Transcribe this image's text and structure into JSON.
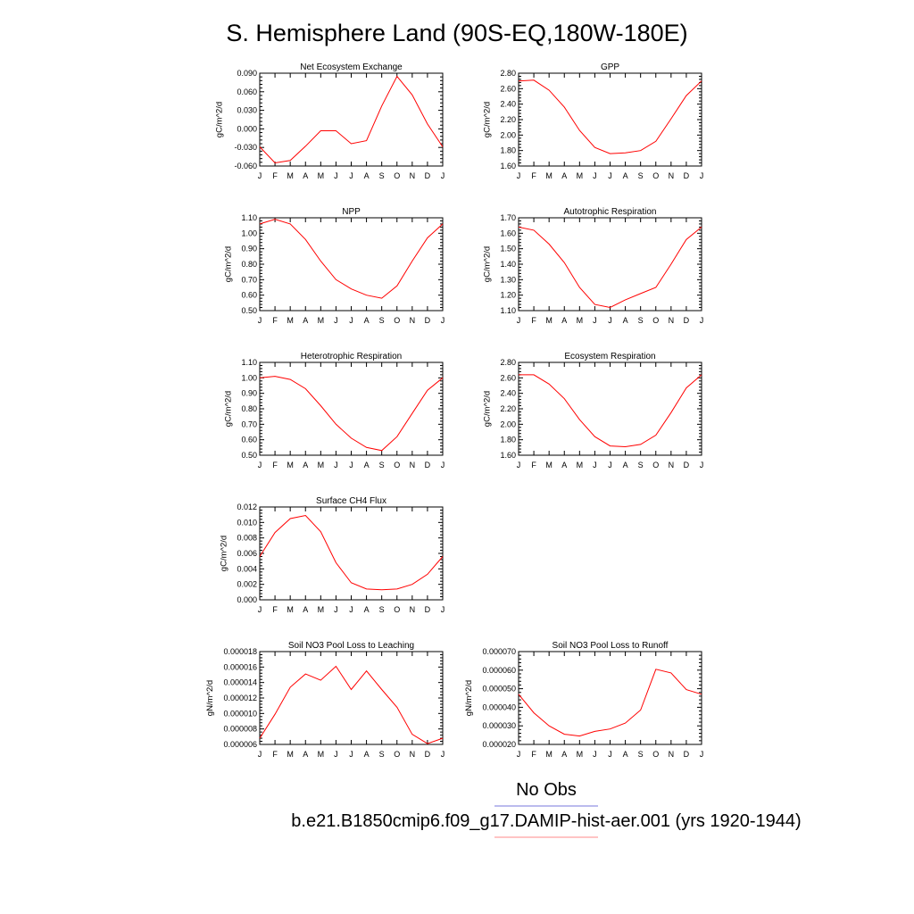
{
  "title": "S. Hemisphere Land (90S-EQ,180W-180E)",
  "legend": {
    "entries": [
      {
        "label": "No Obs",
        "color": "#7777dd"
      },
      {
        "label": "b.e21.B1850cmip6.f09_g17.DAMIP-hist-aer.001 (yrs 1920-1944)",
        "color": "#ff8888"
      }
    ]
  },
  "colors": {
    "series": "#ff0000",
    "axes": "#000000"
  },
  "chart_data": [
    {
      "type": "line",
      "title": "Net Ecosystem Exchange",
      "ylabel": "gC/m^2/d",
      "categories": [
        "J",
        "F",
        "M",
        "A",
        "M",
        "J",
        "J",
        "A",
        "S",
        "O",
        "N",
        "D",
        "J"
      ],
      "ylim": [
        -0.06,
        0.09
      ],
      "yticks": [
        -0.06,
        -0.03,
        0.0,
        0.03,
        0.06,
        0.09
      ],
      "ytick_labels": [
        "-0.060",
        "-0.030",
        "0.000",
        "0.030",
        "0.060",
        "0.090"
      ],
      "values": [
        -0.029,
        -0.055,
        -0.051,
        -0.028,
        -0.003,
        -0.003,
        -0.024,
        -0.019,
        0.037,
        0.085,
        0.055,
        0.008,
        -0.029
      ]
    },
    {
      "type": "line",
      "title": "GPP",
      "ylabel": "gC/m^2/d",
      "categories": [
        "J",
        "F",
        "M",
        "A",
        "M",
        "J",
        "J",
        "A",
        "S",
        "O",
        "N",
        "D",
        "J"
      ],
      "ylim": [
        1.6,
        2.8
      ],
      "yticks": [
        1.6,
        1.8,
        2.0,
        2.2,
        2.4,
        2.6,
        2.8
      ],
      "ytick_labels": [
        "1.60",
        "1.80",
        "2.00",
        "2.20",
        "2.40",
        "2.60",
        "2.80"
      ],
      "values": [
        2.7,
        2.71,
        2.58,
        2.36,
        2.06,
        1.84,
        1.76,
        1.77,
        1.8,
        1.92,
        2.21,
        2.51,
        2.7
      ]
    },
    {
      "type": "line",
      "title": "NPP",
      "ylabel": "gC/m^2/d",
      "categories": [
        "J",
        "F",
        "M",
        "A",
        "M",
        "J",
        "J",
        "A",
        "S",
        "O",
        "N",
        "D",
        "J"
      ],
      "ylim": [
        0.5,
        1.1
      ],
      "yticks": [
        0.5,
        0.6,
        0.7,
        0.8,
        0.9,
        1.0,
        1.1
      ],
      "ytick_labels": [
        "0.50",
        "0.60",
        "0.70",
        "0.80",
        "0.90",
        "1.00",
        "1.10"
      ],
      "values": [
        1.06,
        1.09,
        1.06,
        0.96,
        0.82,
        0.7,
        0.64,
        0.6,
        0.58,
        0.66,
        0.82,
        0.97,
        1.06
      ]
    },
    {
      "type": "line",
      "title": "Autotrophic Respiration",
      "ylabel": "gC/m^2/d",
      "categories": [
        "J",
        "F",
        "M",
        "A",
        "M",
        "J",
        "J",
        "A",
        "S",
        "O",
        "N",
        "D",
        "J"
      ],
      "ylim": [
        1.1,
        1.7
      ],
      "yticks": [
        1.1,
        1.2,
        1.3,
        1.4,
        1.5,
        1.6,
        1.7
      ],
      "ytick_labels": [
        "1.10",
        "1.20",
        "1.30",
        "1.40",
        "1.50",
        "1.60",
        "1.70"
      ],
      "values": [
        1.64,
        1.62,
        1.53,
        1.41,
        1.25,
        1.14,
        1.12,
        1.17,
        1.21,
        1.25,
        1.4,
        1.56,
        1.64
      ]
    },
    {
      "type": "line",
      "title": "Heterotrophic Respiration",
      "ylabel": "gC/m^2/d",
      "categories": [
        "J",
        "F",
        "M",
        "A",
        "M",
        "J",
        "J",
        "A",
        "S",
        "O",
        "N",
        "D",
        "J"
      ],
      "ylim": [
        0.5,
        1.1
      ],
      "yticks": [
        0.5,
        0.6,
        0.7,
        0.8,
        0.9,
        1.0,
        1.1
      ],
      "ytick_labels": [
        "0.50",
        "0.60",
        "0.70",
        "0.80",
        "0.90",
        "1.00",
        "1.10"
      ],
      "values": [
        1.0,
        1.01,
        0.99,
        0.93,
        0.82,
        0.7,
        0.61,
        0.55,
        0.53,
        0.62,
        0.77,
        0.92,
        1.0
      ]
    },
    {
      "type": "line",
      "title": "Ecosystem Respiration",
      "ylabel": "gC/m^2/d",
      "categories": [
        "J",
        "F",
        "M",
        "A",
        "M",
        "J",
        "J",
        "A",
        "S",
        "O",
        "N",
        "D",
        "J"
      ],
      "ylim": [
        1.6,
        2.8
      ],
      "yticks": [
        1.6,
        1.8,
        2.0,
        2.2,
        2.4,
        2.6,
        2.8
      ],
      "ytick_labels": [
        "1.60",
        "1.80",
        "2.00",
        "2.20",
        "2.40",
        "2.60",
        "2.80"
      ],
      "values": [
        2.64,
        2.64,
        2.52,
        2.33,
        2.06,
        1.84,
        1.72,
        1.71,
        1.74,
        1.86,
        2.15,
        2.47,
        2.64
      ]
    },
    {
      "type": "line",
      "title": "Surface CH4 Flux",
      "ylabel": "gC/m^2/d",
      "categories": [
        "J",
        "F",
        "M",
        "A",
        "M",
        "J",
        "J",
        "A",
        "S",
        "O",
        "N",
        "D",
        "J"
      ],
      "ylim": [
        0.0,
        0.012
      ],
      "yticks": [
        0.0,
        0.002,
        0.004,
        0.006,
        0.008,
        0.01,
        0.012
      ],
      "ytick_labels": [
        "0.000",
        "0.002",
        "0.004",
        "0.006",
        "0.008",
        "0.010",
        "0.012"
      ],
      "values": [
        0.0056,
        0.0087,
        0.0105,
        0.0109,
        0.0088,
        0.0048,
        0.0022,
        0.0014,
        0.0013,
        0.0014,
        0.002,
        0.0033,
        0.0056
      ]
    },
    {
      "type": "line",
      "title": "Soil NO3 Pool Loss to Leaching",
      "ylabel": "gN/m^2/d",
      "categories": [
        "J",
        "F",
        "M",
        "A",
        "M",
        "J",
        "J",
        "A",
        "S",
        "O",
        "N",
        "D",
        "J"
      ],
      "ylim": [
        6e-06,
        1.8e-05
      ],
      "yticks": [
        6e-06,
        8e-06,
        1e-05,
        1.2e-05,
        1.4e-05,
        1.6e-05,
        1.8e-05
      ],
      "ytick_labels": [
        "0.000006",
        "0.000008",
        "0.000010",
        "0.000012",
        "0.000014",
        "0.000016",
        "0.000018"
      ],
      "values": [
        6.8e-06,
        9.9e-06,
        1.34e-05,
        1.51e-05,
        1.43e-05,
        1.61e-05,
        1.31e-05,
        1.55e-05,
        1.31e-05,
        1.08e-05,
        7.3e-06,
        6.1e-06,
        6.8e-06
      ]
    },
    {
      "type": "line",
      "title": "Soil NO3 Pool Loss to Runoff",
      "ylabel": "gN/m^2/d",
      "categories": [
        "J",
        "F",
        "M",
        "A",
        "M",
        "J",
        "J",
        "A",
        "S",
        "O",
        "N",
        "D",
        "J"
      ],
      "ylim": [
        2e-05,
        7e-05
      ],
      "yticks": [
        2e-05,
        3e-05,
        4e-05,
        5e-05,
        6e-05,
        7e-05
      ],
      "ytick_labels": [
        "0.000020",
        "0.000030",
        "0.000040",
        "0.000050",
        "0.000060",
        "0.000070"
      ],
      "values": [
        4.7e-05,
        3.7e-05,
        3e-05,
        2.55e-05,
        2.45e-05,
        2.7e-05,
        2.83e-05,
        3.15e-05,
        3.85e-05,
        6.05e-05,
        5.85e-05,
        4.95e-05,
        4.7e-05
      ]
    }
  ]
}
